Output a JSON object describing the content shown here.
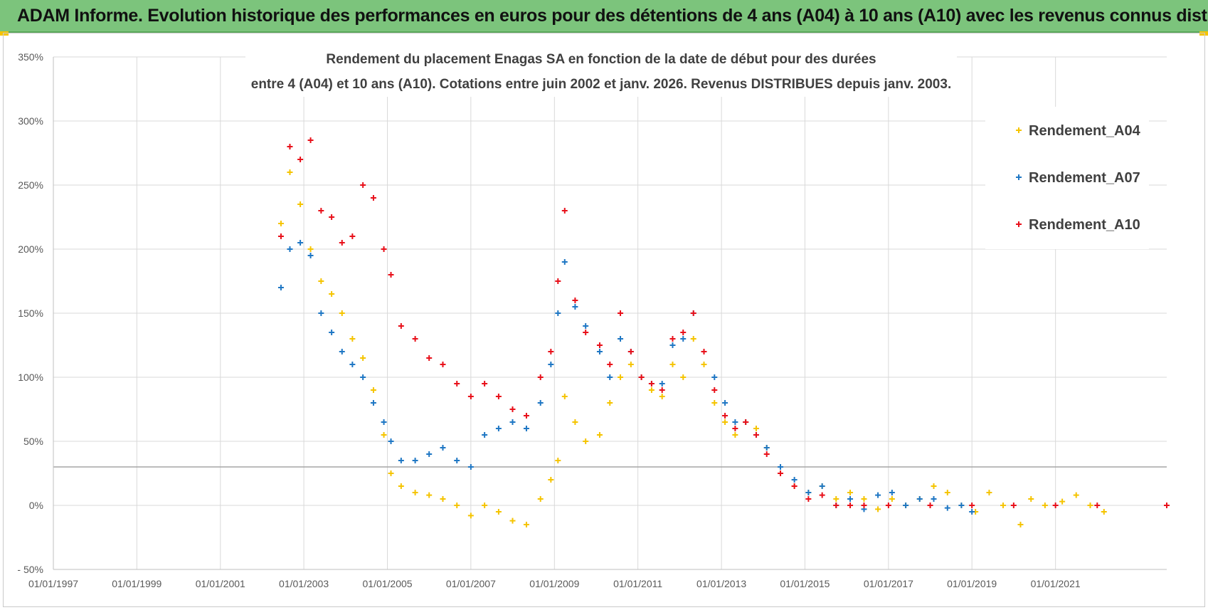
{
  "banner": {
    "title": "ADAM Informe. Evolution historique des performances en euros pour des détentions de 4 ans (A04) à 10 ans (A10) avec les revenus connus distribués"
  },
  "chart_data": {
    "type": "scatter",
    "title_line1": "Rendement du placement Enagas SA en fonction de la date de début pour des durées",
    "title_line2": "entre 4 (A04) et 10 ans (A10).  Cotations entre juin 2002 et janv. 2026.  Revenus DISTRIBUES  depuis janv. 2003.",
    "ylim": [
      -50,
      350
    ],
    "y_ticks": [
      -50,
      0,
      50,
      100,
      150,
      200,
      250,
      300,
      350
    ],
    "y_tick_labels": [
      "- 50%",
      "0%",
      "50%",
      "100%",
      "150%",
      "200%",
      "250%",
      "300%",
      "350%"
    ],
    "xlim": [
      "1997-01-01",
      "2023-09-01"
    ],
    "x_tick_labels": [
      "01/01/1997",
      "01/01/1999",
      "01/01/2001",
      "01/01/2003",
      "01/01/2005",
      "01/01/2007",
      "01/01/2009",
      "01/01/2011",
      "01/01/2013",
      "01/01/2015",
      "01/01/2017",
      "01/01/2019",
      "01/01/2021"
    ],
    "reference_line_y": 30,
    "grid": true,
    "legend_position": "top-right",
    "marker": "+",
    "series": [
      {
        "name": "Rendement_A04",
        "color": "#f5c400",
        "points": [
          [
            "2002-06-15",
            220
          ],
          [
            "2002-09-01",
            260
          ],
          [
            "2002-12-01",
            235
          ],
          [
            "2003-03-01",
            200
          ],
          [
            "2003-06-01",
            175
          ],
          [
            "2003-09-01",
            165
          ],
          [
            "2003-12-01",
            150
          ],
          [
            "2004-03-01",
            130
          ],
          [
            "2004-06-01",
            115
          ],
          [
            "2004-09-01",
            90
          ],
          [
            "2004-12-01",
            55
          ],
          [
            "2005-02-01",
            25
          ],
          [
            "2005-05-01",
            15
          ],
          [
            "2005-09-01",
            10
          ],
          [
            "2006-01-01",
            8
          ],
          [
            "2006-05-01",
            5
          ],
          [
            "2006-09-01",
            0
          ],
          [
            "2007-01-01",
            -8
          ],
          [
            "2007-05-01",
            0
          ],
          [
            "2007-09-01",
            -5
          ],
          [
            "2008-01-01",
            -12
          ],
          [
            "2008-05-01",
            -15
          ],
          [
            "2008-09-01",
            5
          ],
          [
            "2008-12-01",
            20
          ],
          [
            "2009-02-01",
            35
          ],
          [
            "2009-04-01",
            85
          ],
          [
            "2009-07-01",
            65
          ],
          [
            "2009-10-01",
            50
          ],
          [
            "2010-02-01",
            55
          ],
          [
            "2010-05-01",
            80
          ],
          [
            "2010-08-01",
            100
          ],
          [
            "2010-11-01",
            110
          ],
          [
            "2011-02-01",
            100
          ],
          [
            "2011-05-01",
            90
          ],
          [
            "2011-08-01",
            85
          ],
          [
            "2011-11-01",
            110
          ],
          [
            "2012-02-01",
            100
          ],
          [
            "2012-05-01",
            130
          ],
          [
            "2012-08-01",
            110
          ],
          [
            "2012-11-01",
            80
          ],
          [
            "2013-02-01",
            65
          ],
          [
            "2013-05-01",
            55
          ],
          [
            "2013-08-01",
            65
          ],
          [
            "2013-11-01",
            60
          ],
          [
            "2014-02-01",
            45
          ],
          [
            "2014-06-01",
            25
          ],
          [
            "2014-10-01",
            15
          ],
          [
            "2015-02-01",
            10
          ],
          [
            "2015-06-01",
            15
          ],
          [
            "2015-10-01",
            5
          ],
          [
            "2016-02-01",
            10
          ],
          [
            "2016-06-01",
            5
          ],
          [
            "2016-10-01",
            -3
          ],
          [
            "2017-02-01",
            5
          ],
          [
            "2017-06-01",
            0
          ],
          [
            "2017-10-01",
            5
          ],
          [
            "2018-02-01",
            15
          ],
          [
            "2018-06-01",
            10
          ],
          [
            "2018-10-01",
            0
          ],
          [
            "2019-02-01",
            -5
          ],
          [
            "2019-06-01",
            10
          ],
          [
            "2019-10-01",
            0
          ],
          [
            "2020-03-01",
            -15
          ],
          [
            "2020-06-01",
            5
          ],
          [
            "2020-10-01",
            0
          ],
          [
            "2021-03-01",
            3
          ],
          [
            "2021-07-01",
            8
          ],
          [
            "2021-11-01",
            0
          ],
          [
            "2022-03-01",
            -5
          ]
        ]
      },
      {
        "name": "Rendement_A07",
        "color": "#1f77c4",
        "points": [
          [
            "2002-06-15",
            170
          ],
          [
            "2002-09-01",
            200
          ],
          [
            "2002-12-01",
            205
          ],
          [
            "2003-03-01",
            195
          ],
          [
            "2003-06-01",
            150
          ],
          [
            "2003-09-01",
            135
          ],
          [
            "2003-12-01",
            120
          ],
          [
            "2004-03-01",
            110
          ],
          [
            "2004-06-01",
            100
          ],
          [
            "2004-09-01",
            80
          ],
          [
            "2004-12-01",
            65
          ],
          [
            "2005-02-01",
            50
          ],
          [
            "2005-05-01",
            35
          ],
          [
            "2005-09-01",
            35
          ],
          [
            "2006-01-01",
            40
          ],
          [
            "2006-05-01",
            45
          ],
          [
            "2006-09-01",
            35
          ],
          [
            "2007-01-01",
            30
          ],
          [
            "2007-05-01",
            55
          ],
          [
            "2007-09-01",
            60
          ],
          [
            "2008-01-01",
            65
          ],
          [
            "2008-05-01",
            60
          ],
          [
            "2008-09-01",
            80
          ],
          [
            "2008-12-01",
            110
          ],
          [
            "2009-02-01",
            150
          ],
          [
            "2009-04-01",
            190
          ],
          [
            "2009-07-01",
            155
          ],
          [
            "2009-10-01",
            140
          ],
          [
            "2010-02-01",
            120
          ],
          [
            "2010-05-01",
            100
          ],
          [
            "2010-08-01",
            130
          ],
          [
            "2010-11-01",
            120
          ],
          [
            "2011-02-01",
            100
          ],
          [
            "2011-05-01",
            95
          ],
          [
            "2011-08-01",
            95
          ],
          [
            "2011-11-01",
            125
          ],
          [
            "2012-02-01",
            130
          ],
          [
            "2012-05-01",
            150
          ],
          [
            "2012-08-01",
            120
          ],
          [
            "2012-11-01",
            100
          ],
          [
            "2013-02-01",
            80
          ],
          [
            "2013-05-01",
            65
          ],
          [
            "2013-08-01",
            65
          ],
          [
            "2013-11-01",
            55
          ],
          [
            "2014-02-01",
            45
          ],
          [
            "2014-06-01",
            30
          ],
          [
            "2014-10-01",
            20
          ],
          [
            "2015-02-01",
            10
          ],
          [
            "2015-06-01",
            15
          ],
          [
            "2015-10-01",
            0
          ],
          [
            "2016-02-01",
            5
          ],
          [
            "2016-06-01",
            -3
          ],
          [
            "2016-10-01",
            8
          ],
          [
            "2017-02-01",
            10
          ],
          [
            "2017-06-01",
            0
          ],
          [
            "2017-10-01",
            5
          ],
          [
            "2018-02-01",
            5
          ],
          [
            "2018-06-01",
            -2
          ],
          [
            "2018-10-01",
            0
          ],
          [
            "2019-01-01",
            -5
          ]
        ]
      },
      {
        "name": "Rendement_A10",
        "color": "#e8101a",
        "points": [
          [
            "2002-06-15",
            210
          ],
          [
            "2002-09-01",
            280
          ],
          [
            "2002-12-01",
            270
          ],
          [
            "2003-03-01",
            285
          ],
          [
            "2003-06-01",
            230
          ],
          [
            "2003-09-01",
            225
          ],
          [
            "2003-12-01",
            205
          ],
          [
            "2004-03-01",
            210
          ],
          [
            "2004-06-01",
            250
          ],
          [
            "2004-09-01",
            240
          ],
          [
            "2004-12-01",
            200
          ],
          [
            "2005-02-01",
            180
          ],
          [
            "2005-05-01",
            140
          ],
          [
            "2005-09-01",
            130
          ],
          [
            "2006-01-01",
            115
          ],
          [
            "2006-05-01",
            110
          ],
          [
            "2006-09-01",
            95
          ],
          [
            "2007-01-01",
            85
          ],
          [
            "2007-05-01",
            95
          ],
          [
            "2007-09-01",
            85
          ],
          [
            "2008-01-01",
            75
          ],
          [
            "2008-05-01",
            70
          ],
          [
            "2008-09-01",
            100
          ],
          [
            "2008-12-01",
            120
          ],
          [
            "2009-02-01",
            175
          ],
          [
            "2009-04-01",
            230
          ],
          [
            "2009-07-01",
            160
          ],
          [
            "2009-10-01",
            135
          ],
          [
            "2010-02-01",
            125
          ],
          [
            "2010-05-01",
            110
          ],
          [
            "2010-08-01",
            150
          ],
          [
            "2010-11-01",
            120
          ],
          [
            "2011-02-01",
            100
          ],
          [
            "2011-05-01",
            95
          ],
          [
            "2011-08-01",
            90
          ],
          [
            "2011-11-01",
            130
          ],
          [
            "2012-02-01",
            135
          ],
          [
            "2012-05-01",
            150
          ],
          [
            "2012-08-01",
            120
          ],
          [
            "2012-11-01",
            90
          ],
          [
            "2013-02-01",
            70
          ],
          [
            "2013-05-01",
            60
          ],
          [
            "2013-08-01",
            65
          ],
          [
            "2013-11-01",
            55
          ],
          [
            "2014-02-01",
            40
          ],
          [
            "2014-06-01",
            25
          ],
          [
            "2014-10-01",
            15
          ],
          [
            "2015-02-01",
            5
          ],
          [
            "2015-06-01",
            8
          ],
          [
            "2015-10-01",
            0
          ],
          [
            "2016-02-01",
            0
          ],
          [
            "2016-06-01",
            0
          ],
          [
            "2017-01-01",
            0
          ],
          [
            "2018-01-01",
            0
          ],
          [
            "2019-01-01",
            0
          ],
          [
            "2020-01-01",
            0
          ],
          [
            "2021-01-01",
            0
          ],
          [
            "2022-01-01",
            0
          ],
          [
            "2023-09-01",
            0
          ]
        ]
      }
    ]
  }
}
